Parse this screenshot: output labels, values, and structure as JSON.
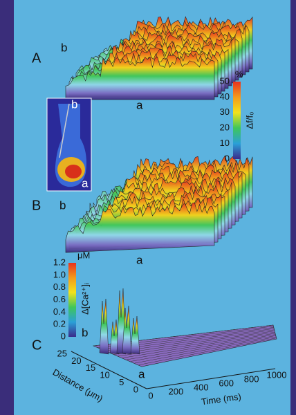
{
  "panels": {
    "A": {
      "label": "A",
      "end_b": "b",
      "end_a": "a"
    },
    "B": {
      "label": "B",
      "end_b": "b",
      "end_a": "a"
    },
    "C": {
      "label": "C",
      "end_b": "b",
      "end_a": "a"
    }
  },
  "inset": {
    "label_b": "b",
    "label_a": "a"
  },
  "colorbar_fluorescence": {
    "unit": "%",
    "ticks": [
      "50",
      "40",
      "30",
      "20",
      "10",
      "0"
    ],
    "label": "Δf/f₀"
  },
  "colorbar_calcium": {
    "unit": "μM",
    "ticks": [
      "1.2",
      "1.0",
      "0.8",
      "0.6",
      "0.4",
      "0.2",
      "0"
    ],
    "label": "Δ[Ca²⁺]ᵢ"
  },
  "distance_axis": {
    "ticks": [
      "25",
      "20",
      "15",
      "10",
      "5",
      "0"
    ],
    "label": "Distance (μm)"
  },
  "time_axis": {
    "ticks": [
      "0",
      "200",
      "400",
      "600",
      "800",
      "1000"
    ],
    "label": "Time (ms)"
  }
}
